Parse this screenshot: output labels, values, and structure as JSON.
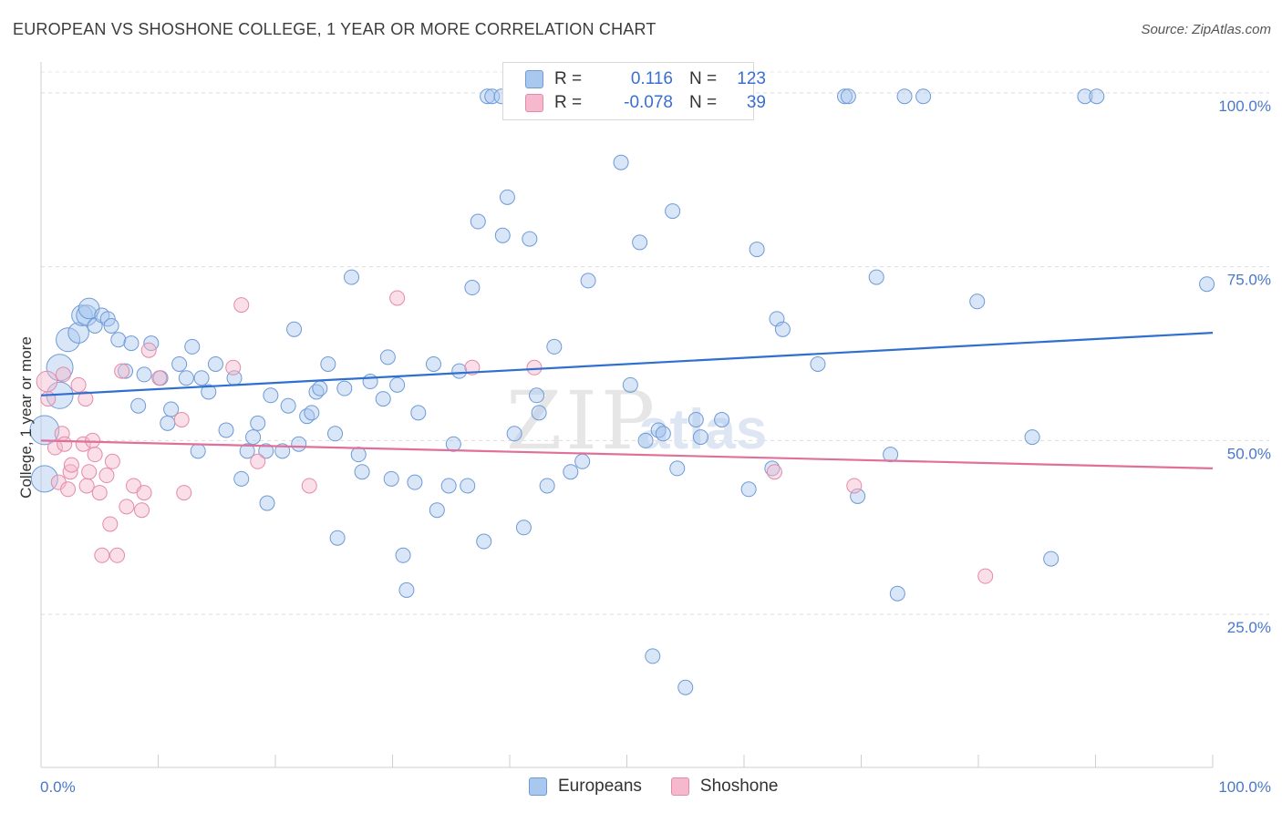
{
  "header": {
    "title": "EUROPEAN VS SHOSHONE COLLEGE, 1 YEAR OR MORE CORRELATION CHART",
    "source": "Source: ZipAtlas.com"
  },
  "watermark": {
    "main": "ZIP",
    "sub": "atlas"
  },
  "legend": {
    "rows": [
      {
        "r_label": "R =",
        "r_value": "0.116",
        "n_label": "N =",
        "n_value": "123",
        "color": "#a8c8f0"
      },
      {
        "r_label": "R =",
        "r_value": "-0.078",
        "n_label": "N =",
        "n_value": "39",
        "color": "#f5b8cc"
      }
    ]
  },
  "bottom_legend": [
    {
      "label": "Europeans",
      "color": "#a8c8f0"
    },
    {
      "label": "Shoshone",
      "color": "#f5b8cc"
    }
  ],
  "chart_data": {
    "type": "scatter",
    "ylabel": "College, 1 year or more",
    "x_tick_labels": {
      "left": "0.0%",
      "right": "100.0%"
    },
    "y_tick_labels": [
      "100.0%",
      "75.0%",
      "50.0%",
      "25.0%"
    ],
    "y_ticks": [
      100,
      75,
      50,
      25
    ],
    "xlim": [
      0,
      100
    ],
    "ylim": [
      3,
      103
    ],
    "grid": "horizontal dashed",
    "legend_position": "top-center",
    "colors": {
      "europeans_fill": "#a8c8f0",
      "europeans_stroke": "#6f9ad6",
      "europeans_line": "#2f6fd0",
      "shoshone_fill": "#f5b8cc",
      "shoshone_stroke": "#e48aa8",
      "shoshone_line": "#e0709a"
    },
    "series": [
      {
        "name": "Europeans",
        "trend": {
          "x": [
            0,
            100
          ],
          "y": [
            56.5,
            65.5
          ]
        },
        "points": [
          [
            0.3,
            51.5,
            3
          ],
          [
            0.3,
            44.5,
            2.5
          ],
          [
            1.6,
            60.5,
            2.5
          ],
          [
            1.6,
            56.5,
            2.5
          ],
          [
            2.3,
            64.5,
            2
          ],
          [
            3.2,
            65.5,
            1.5
          ],
          [
            3.5,
            68,
            1.5
          ],
          [
            3.9,
            68,
            1.5
          ],
          [
            4.1,
            69,
            1.5
          ],
          [
            4.6,
            66.5,
            1
          ],
          [
            5.2,
            68,
            1
          ],
          [
            5.7,
            67.5,
            1
          ],
          [
            6.0,
            66.5,
            1
          ],
          [
            6.6,
            64.5,
            1
          ],
          [
            7.2,
            60,
            1
          ],
          [
            7.7,
            64,
            1
          ],
          [
            8.3,
            55,
            1
          ],
          [
            8.8,
            59.5,
            1
          ],
          [
            9.4,
            64,
            1
          ],
          [
            10.2,
            59,
            1
          ],
          [
            10.8,
            52.5,
            1
          ],
          [
            11.1,
            54.5,
            1
          ],
          [
            11.8,
            61,
            1
          ],
          [
            12.4,
            59,
            1
          ],
          [
            12.9,
            63.5,
            1
          ],
          [
            13.4,
            48.5,
            1
          ],
          [
            13.7,
            59,
            1
          ],
          [
            14.3,
            57,
            1
          ],
          [
            14.9,
            61,
            1
          ],
          [
            15.8,
            51.5,
            1
          ],
          [
            16.5,
            59,
            1
          ],
          [
            17.1,
            44.5,
            1
          ],
          [
            17.6,
            48.5,
            1
          ],
          [
            18.1,
            50.5,
            1
          ],
          [
            18.5,
            52.5,
            1
          ],
          [
            19.2,
            48.5,
            1
          ],
          [
            19.3,
            41,
            1
          ],
          [
            19.6,
            56.5,
            1
          ],
          [
            20.6,
            48.5,
            1
          ],
          [
            21.1,
            55,
            1
          ],
          [
            21.6,
            66,
            1
          ],
          [
            22.0,
            49.5,
            1
          ],
          [
            22.7,
            53.5,
            1
          ],
          [
            23.1,
            54,
            1
          ],
          [
            23.5,
            57,
            1
          ],
          [
            23.8,
            57.5,
            1
          ],
          [
            24.5,
            61,
            1
          ],
          [
            25.1,
            51,
            1
          ],
          [
            25.3,
            36,
            1
          ],
          [
            25.9,
            57.5,
            1
          ],
          [
            26.5,
            73.5,
            1
          ],
          [
            27.1,
            48,
            1
          ],
          [
            27.4,
            45.5,
            1
          ],
          [
            28.1,
            58.5,
            1
          ],
          [
            29.2,
            56,
            1
          ],
          [
            29.6,
            62,
            1
          ],
          [
            29.9,
            44.5,
            1
          ],
          [
            30.4,
            58,
            1
          ],
          [
            30.9,
            33.5,
            1
          ],
          [
            31.2,
            28.5,
            1
          ],
          [
            31.9,
            44,
            1
          ],
          [
            32.2,
            54,
            1
          ],
          [
            33.5,
            61,
            1
          ],
          [
            33.8,
            40,
            1
          ],
          [
            34.8,
            43.5,
            1
          ],
          [
            35.2,
            49.5,
            1
          ],
          [
            35.7,
            60,
            1
          ],
          [
            36.4,
            43.5,
            1
          ],
          [
            36.8,
            72,
            1
          ],
          [
            37.3,
            81.5,
            1
          ],
          [
            37.8,
            35.5,
            1
          ],
          [
            38.1,
            99.5,
            1
          ],
          [
            39.4,
            79.5,
            1
          ],
          [
            39.8,
            85,
            1
          ],
          [
            40.4,
            51,
            1
          ],
          [
            41.2,
            37.5,
            1
          ],
          [
            41.7,
            79,
            1
          ],
          [
            42.3,
            56.5,
            1
          ],
          [
            42.5,
            54,
            1
          ],
          [
            43.2,
            43.5,
            1
          ],
          [
            43.8,
            63.5,
            1
          ],
          [
            45.2,
            45.5,
            1
          ],
          [
            46.2,
            47,
            1
          ],
          [
            46.7,
            73,
            1
          ],
          [
            49.5,
            90,
            1
          ],
          [
            50.3,
            58,
            1
          ],
          [
            51.1,
            78.5,
            1
          ],
          [
            51.6,
            50,
            1
          ],
          [
            52.2,
            19,
            1
          ],
          [
            52.7,
            51.5,
            1
          ],
          [
            53.1,
            51,
            1
          ],
          [
            53.9,
            83,
            1
          ],
          [
            54.3,
            46,
            1
          ],
          [
            55.9,
            53,
            1
          ],
          [
            56.3,
            50.5,
            1
          ],
          [
            58.1,
            53,
            1
          ],
          [
            60.4,
            43,
            1
          ],
          [
            61.1,
            77.5,
            1
          ],
          [
            62.4,
            46,
            1
          ],
          [
            62.8,
            67.5,
            1
          ],
          [
            63.3,
            66,
            1
          ],
          [
            66.3,
            61,
            1
          ],
          [
            68.6,
            99.5,
            1
          ],
          [
            68.9,
            99.5,
            1
          ],
          [
            69.7,
            42,
            1
          ],
          [
            71.3,
            73.5,
            1
          ],
          [
            72.5,
            48,
            1
          ],
          [
            73.1,
            28,
            1
          ],
          [
            73.7,
            99.5,
            1
          ],
          [
            75.3,
            99.5,
            1
          ],
          [
            79.9,
            70,
            1
          ],
          [
            84.6,
            50.5,
            1
          ],
          [
            86.2,
            33,
            1
          ],
          [
            89.1,
            99.5,
            1
          ],
          [
            90.1,
            99.5,
            1
          ],
          [
            99.5,
            72.5,
            1
          ],
          [
            38.5,
            99.5,
            1
          ],
          [
            41.0,
            99.5,
            1
          ],
          [
            51.0,
            99.5,
            1
          ],
          [
            39.3,
            99.5,
            1
          ],
          [
            48.3,
            99.5,
            1
          ],
          [
            55.0,
            14.5,
            1
          ]
        ]
      },
      {
        "name": "Shoshone",
        "trend": {
          "x": [
            0,
            100
          ],
          "y": [
            50,
            46
          ]
        },
        "points": [
          [
            0.5,
            58.5,
            1.5
          ],
          [
            0.6,
            56,
            1
          ],
          [
            1.2,
            49,
            1
          ],
          [
            1.5,
            44,
            1
          ],
          [
            1.8,
            51,
            1
          ],
          [
            1.9,
            59.5,
            1
          ],
          [
            2.0,
            49.5,
            1
          ],
          [
            2.3,
            43,
            1
          ],
          [
            2.5,
            45.5,
            1
          ],
          [
            2.6,
            46.5,
            1
          ],
          [
            3.2,
            58,
            1
          ],
          [
            3.6,
            49.5,
            1
          ],
          [
            3.8,
            56,
            1
          ],
          [
            3.9,
            43.5,
            1
          ],
          [
            4.1,
            45.5,
            1
          ],
          [
            4.4,
            50,
            1
          ],
          [
            4.6,
            48,
            1
          ],
          [
            5.0,
            42.5,
            1
          ],
          [
            5.2,
            33.5,
            1
          ],
          [
            5.6,
            45,
            1
          ],
          [
            5.9,
            38,
            1
          ],
          [
            6.1,
            47,
            1
          ],
          [
            6.5,
            33.5,
            1
          ],
          [
            6.9,
            60,
            1
          ],
          [
            7.3,
            40.5,
            1
          ],
          [
            7.9,
            43.5,
            1
          ],
          [
            8.6,
            40,
            1
          ],
          [
            8.8,
            42.5,
            1
          ],
          [
            9.2,
            63,
            1
          ],
          [
            10.1,
            59,
            1
          ],
          [
            12.0,
            53,
            1
          ],
          [
            12.2,
            42.5,
            1
          ],
          [
            16.4,
            60.5,
            1
          ],
          [
            17.1,
            69.5,
            1
          ],
          [
            18.5,
            47,
            1
          ],
          [
            22.9,
            43.5,
            1
          ],
          [
            30.4,
            70.5,
            1
          ],
          [
            36.8,
            60.5,
            1
          ],
          [
            42.1,
            60.5,
            1
          ],
          [
            62.6,
            45.5,
            1
          ],
          [
            69.4,
            43.5,
            1
          ],
          [
            80.6,
            30.5,
            1
          ]
        ]
      }
    ]
  }
}
